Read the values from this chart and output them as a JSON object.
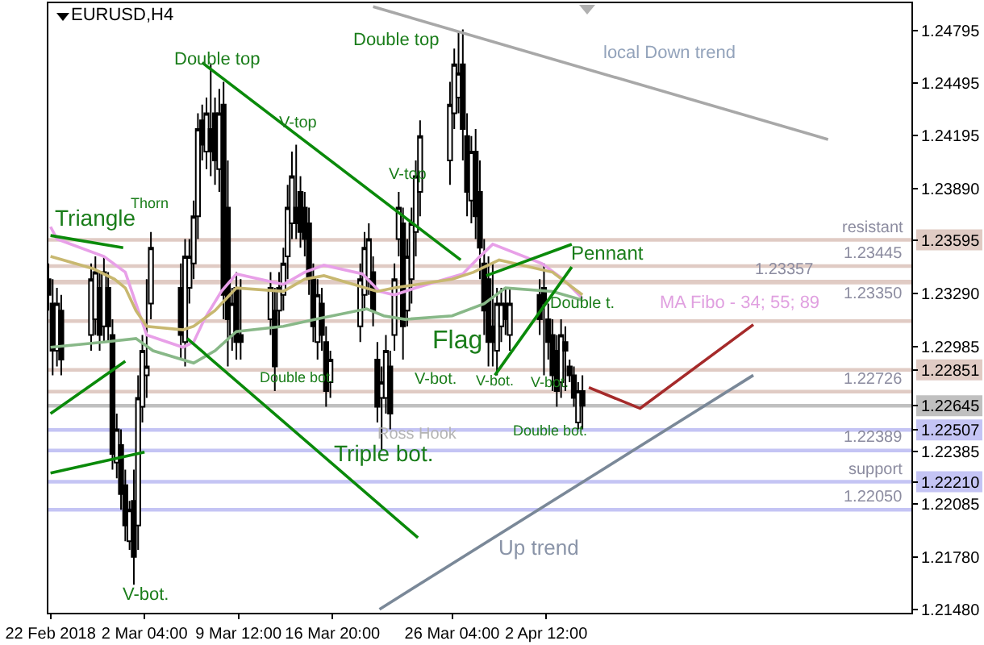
{
  "chart_data": {
    "type": "candlestick",
    "title": "EURUSD,H4",
    "color": "#000000",
    "x": [
      "2018-02-22T16:00",
      "2018-02-23T00:00",
      "2018-02-23T08:00",
      "2018-02-23T16:00",
      "2018-02-26T00:00",
      "2018-02-26T08:00",
      "2018-02-26T16:00",
      "2018-02-27T00:00",
      "2018-02-27T08:00",
      "2018-02-27T16:00",
      "2018-02-28T00:00",
      "2018-02-28T08:00",
      "2018-02-28T16:00",
      "2018-03-01T00:00",
      "2018-03-01T08:00",
      "2018-03-01T16:00",
      "2018-03-02T00:00",
      "2018-03-02T08:00",
      "2018-03-02T16:00",
      "2018-03-05T00:00",
      "2018-03-05T08:00",
      "2018-03-05T16:00",
      "2018-03-06T00:00",
      "2018-03-06T08:00",
      "2018-03-06T16:00",
      "2018-03-07T00:00",
      "2018-03-07T08:00",
      "2018-03-07T16:00",
      "2018-03-08T00:00",
      "2018-03-08T08:00",
      "2018-03-08T16:00",
      "2018-03-09T00:00",
      "2018-03-09T08:00",
      "2018-03-09T16:00",
      "2018-03-12T00:00",
      "2018-03-12T08:00",
      "2018-03-12T16:00",
      "2018-03-13T00:00",
      "2018-03-13T08:00",
      "2018-03-13T16:00",
      "2018-03-14T00:00",
      "2018-03-14T08:00",
      "2018-03-14T16:00",
      "2018-03-15T00:00",
      "2018-03-15T08:00",
      "2018-03-15T16:00",
      "2018-03-16T00:00",
      "2018-03-16T08:00",
      "2018-03-16T16:00",
      "2018-03-19T00:00",
      "2018-03-19T08:00",
      "2018-03-19T16:00",
      "2018-03-20T00:00",
      "2018-03-20T08:00",
      "2018-03-20T16:00",
      "2018-03-21T00:00",
      "2018-03-21T08:00",
      "2018-03-21T16:00",
      "2018-03-22T00:00",
      "2018-03-22T08:00",
      "2018-03-22T16:00",
      "2018-03-23T00:00",
      "2018-03-23T08:00",
      "2018-03-23T16:00",
      "2018-03-26T00:00",
      "2018-03-26T08:00",
      "2018-03-26T16:00",
      "2018-03-27T00:00",
      "2018-03-27T08:00",
      "2018-03-27T16:00",
      "2018-03-28T00:00",
      "2018-03-28T08:00",
      "2018-03-28T16:00",
      "2018-03-29T00:00",
      "2018-03-29T08:00",
      "2018-03-29T16:00",
      "2018-03-30T00:00",
      "2018-03-30T08:00",
      "2018-03-30T16:00",
      "2018-04-02T00:00",
      "2018-04-02T08:00",
      "2018-04-02T16:00",
      "2018-04-03T00:00",
      "2018-04-03T08:00",
      "2018-04-03T16:00",
      "2018-04-04T00:00",
      "2018-04-04T08:00",
      "2018-04-04T16:00",
      "2018-04-05T00:00",
      "2018-04-05T08:00"
    ],
    "ohlc": [
      [
        1.2337,
        1.2346,
        1.2319,
        1.2328
      ],
      [
        1.2323,
        1.2337,
        1.2282,
        1.2296
      ],
      [
        1.2296,
        1.2332,
        1.2287,
        1.2323
      ],
      [
        1.2319,
        1.2328,
        1.2282,
        1.2291
      ],
      [
        1.2305,
        1.2346,
        1.2296,
        1.2337
      ],
      [
        1.2314,
        1.235,
        1.2305,
        1.2341
      ],
      [
        1.2332,
        1.2341,
        1.2296,
        1.2305
      ],
      [
        1.231,
        1.235,
        1.2301,
        1.2341
      ],
      [
        1.2332,
        1.2341,
        1.2301,
        1.231
      ],
      [
        1.2305,
        1.2314,
        1.2228,
        1.2237
      ],
      [
        1.2232,
        1.226,
        1.2223,
        1.2251
      ],
      [
        1.2242,
        1.2251,
        1.2205,
        1.2214
      ],
      [
        1.2219,
        1.2228,
        1.2187,
        1.2196
      ],
      [
        1.2187,
        1.221,
        1.2182,
        1.2205
      ],
      [
        1.221,
        1.2228,
        1.2162,
        1.2178
      ],
      [
        1.2196,
        1.2282,
        1.2182,
        1.2269
      ],
      [
        1.2264,
        1.2305,
        1.2255,
        1.2296
      ],
      [
        1.2282,
        1.2337,
        1.2269,
        1.2287
      ],
      [
        1.2323,
        1.2364,
        1.2314,
        1.2355
      ],
      [
        1.2332,
        1.2346,
        1.2291,
        1.2305
      ],
      [
        1.2301,
        1.236,
        1.2287,
        1.235
      ],
      [
        1.2332,
        1.236,
        1.2323,
        1.235
      ],
      [
        1.2346,
        1.2382,
        1.2337,
        1.2373
      ],
      [
        1.2373,
        1.2432,
        1.236,
        1.2423
      ],
      [
        1.2428,
        1.2437,
        1.2405,
        1.2414
      ],
      [
        1.241,
        1.2441,
        1.24,
        1.2432
      ],
      [
        1.2423,
        1.246,
        1.2396,
        1.241
      ],
      [
        1.2432,
        1.2441,
        1.2391,
        1.2405
      ],
      [
        1.24,
        1.2446,
        1.2387,
        1.2432
      ],
      [
        1.2437,
        1.245,
        1.2314,
        1.2328
      ],
      [
        1.2378,
        1.2405,
        1.2287,
        1.2314
      ],
      [
        1.2305,
        1.2332,
        1.2296,
        1.2323
      ],
      [
        1.2332,
        1.2341,
        1.2291,
        1.2301
      ],
      [
        1.2305,
        1.2337,
        1.2291,
        1.2301
      ],
      [
        1.2314,
        1.2341,
        1.2305,
        1.2332
      ],
      [
        1.2319,
        1.2332,
        1.2273,
        1.2287
      ],
      [
        1.2319,
        1.2341,
        1.231,
        1.2332
      ],
      [
        1.2328,
        1.2355,
        1.2319,
        1.2346
      ],
      [
        1.235,
        1.2391,
        1.2337,
        1.2378
      ],
      [
        1.2369,
        1.241,
        1.236,
        1.2396
      ],
      [
        1.2378,
        1.2414,
        1.236,
        1.2369
      ],
      [
        1.2387,
        1.2396,
        1.2355,
        1.2364
      ],
      [
        1.2378,
        1.2387,
        1.235,
        1.236
      ],
      [
        1.2369,
        1.2378,
        1.2328,
        1.2337
      ],
      [
        1.2337,
        1.2346,
        1.2301,
        1.231
      ],
      [
        1.2301,
        1.2337,
        1.2291,
        1.2328
      ],
      [
        1.2323,
        1.2332,
        1.2296,
        1.2305
      ],
      [
        1.2301,
        1.231,
        1.2264,
        1.2273
      ],
      [
        1.2278,
        1.2296,
        1.2269,
        1.2291
      ],
      [
        1.231,
        1.2346,
        1.2301,
        1.2337
      ],
      [
        1.2328,
        1.2364,
        1.2319,
        1.2355
      ],
      [
        1.2337,
        1.2369,
        1.2328,
        1.236
      ],
      [
        1.2341,
        1.235,
        1.231,
        1.2319
      ],
      [
        1.2291,
        1.2301,
        1.2255,
        1.2264
      ],
      [
        1.2269,
        1.2287,
        1.2239,
        1.2278
      ],
      [
        1.2269,
        1.2305,
        1.226,
        1.2296
      ],
      [
        1.2287,
        1.2296,
        1.2251,
        1.226
      ],
      [
        1.2305,
        1.2346,
        1.2296,
        1.2337
      ],
      [
        1.236,
        1.2387,
        1.235,
        1.2378
      ],
      [
        1.2369,
        1.2378,
        1.2291,
        1.231
      ],
      [
        1.2319,
        1.236,
        1.231,
        1.235
      ],
      [
        1.2337,
        1.2378,
        1.2323,
        1.2369
      ],
      [
        1.2364,
        1.2405,
        1.235,
        1.2396
      ],
      [
        1.2387,
        1.2428,
        1.2373,
        1.2419
      ],
      [
        1.2405,
        1.245,
        1.2391,
        1.2437
      ],
      [
        1.2432,
        1.2469,
        1.2423,
        1.246
      ],
      [
        1.2441,
        1.2478,
        1.2432,
        1.2455
      ],
      [
        1.246,
        1.248,
        1.2405,
        1.2423
      ],
      [
        1.2419,
        1.2432,
        1.2373,
        1.2387
      ],
      [
        1.2382,
        1.2419,
        1.2369,
        1.241
      ],
      [
        1.241,
        1.2423,
        1.236,
        1.2373
      ],
      [
        1.2387,
        1.2405,
        1.2337,
        1.2355
      ],
      [
        1.2346,
        1.236,
        1.2305,
        1.2319
      ],
      [
        1.2337,
        1.235,
        1.2287,
        1.2301
      ],
      [
        1.231,
        1.2346,
        1.2287,
        1.2301
      ],
      [
        1.2296,
        1.2332,
        1.2282,
        1.2323
      ],
      [
        1.231,
        1.2332,
        1.2301,
        1.2323
      ],
      [
        1.2323,
        1.2332,
        1.2305,
        1.2314
      ],
      [
        1.2305,
        1.2332,
        1.2296,
        1.2323
      ],
      [
        1.2328,
        1.2337,
        1.2305,
        1.2314
      ],
      [
        1.2332,
        1.2346,
        1.2282,
        1.2323
      ],
      [
        1.2314,
        1.2323,
        1.2291,
        1.2301
      ],
      [
        1.2305,
        1.2314,
        1.2273,
        1.2282
      ],
      [
        1.2296,
        1.2305,
        1.2264,
        1.2273
      ],
      [
        1.2278,
        1.2314,
        1.2269,
        1.2305
      ],
      [
        1.2301,
        1.231,
        1.2273,
        1.2296
      ],
      [
        1.2287,
        1.2291,
        1.2278,
        1.2282
      ],
      [
        1.2282,
        1.2287,
        1.2264,
        1.2269
      ],
      [
        1.2255,
        1.2278,
        1.2251,
        1.2273
      ],
      [
        1.2273,
        1.2282,
        1.2251,
        1.22645
      ]
    ],
    "series": [
      {
        "type": "line",
        "color": "#e8a0e8",
        "x": [
          "2018-02-22T20:00",
          "2018-02-23T08:00",
          "2018-02-27T00:00",
          "2018-02-28T16:00",
          "2018-03-01T12:00",
          "2018-03-02T08:00",
          "2018-03-05T04:00",
          "2018-03-06T00:00",
          "2018-03-06T20:00",
          "2018-03-08T04:00",
          "2018-03-09T08:00",
          "2018-03-13T00:00",
          "2018-03-14T16:00",
          "2018-03-16T04:00",
          "2018-03-19T04:00",
          "2018-03-20T12:00",
          "2018-03-21T16:00",
          "2018-03-23T08:00",
          "2018-03-27T00:00",
          "2018-03-28T08:00",
          "2018-03-29T08:00",
          "2018-04-02T04:00",
          "2018-04-03T20:00",
          "2018-04-05T08:00"
        ],
        "values": [
          1.2367,
          1.236,
          1.235,
          1.2341,
          1.2323,
          1.2305,
          1.2298,
          1.2301,
          1.2314,
          1.233,
          1.234,
          1.2334,
          1.2341,
          1.2345,
          1.234,
          1.233,
          1.2328,
          1.2332,
          1.234,
          1.235,
          1.2357,
          1.2346,
          1.2337,
          1.2326
        ]
      },
      {
        "type": "line",
        "color": "#c8b870",
        "x": [
          "2018-02-22T20:00",
          "2018-02-26T04:00",
          "2018-02-27T20:00",
          "2018-02-28T16:00",
          "2018-03-01T12:00",
          "2018-03-02T08:00",
          "2018-03-05T04:00",
          "2018-03-06T00:00",
          "2018-03-07T16:00",
          "2018-03-09T08:00",
          "2018-03-13T00:00",
          "2018-03-14T16:00",
          "2018-03-16T04:00",
          "2018-03-20T08:00",
          "2018-03-21T16:00",
          "2018-03-26T04:00",
          "2018-03-27T20:00",
          "2018-03-29T20:00",
          "2018-04-03T00:00",
          "2018-04-05T08:00"
        ],
        "values": [
          1.235,
          1.2343,
          1.2337,
          1.2332,
          1.2319,
          1.231,
          1.2308,
          1.231,
          1.2319,
          1.2332,
          1.233,
          1.2337,
          1.2339,
          1.233,
          1.2332,
          1.2337,
          1.2341,
          1.2348,
          1.2341,
          1.2328
        ]
      },
      {
        "type": "line",
        "color": "#88b888",
        "x": [
          "2018-02-22T20:00",
          "2018-02-27T00:00",
          "2018-03-01T12:00",
          "2018-03-02T20:00",
          "2018-03-06T00:00",
          "2018-03-07T16:00",
          "2018-03-09T08:00",
          "2018-03-13T00:00",
          "2018-03-15T12:00",
          "2018-03-19T12:00",
          "2018-03-20T20:00",
          "2018-03-22T12:00",
          "2018-03-26T04:00",
          "2018-03-28T16:00",
          "2018-03-30T08:00",
          "2018-04-03T00:00",
          "2018-04-05T08:00"
        ],
        "values": [
          1.2298,
          1.2301,
          1.2303,
          1.2296,
          1.2289,
          1.2296,
          1.2307,
          1.231,
          1.2314,
          1.232,
          1.2316,
          1.2314,
          1.2316,
          1.2323,
          1.2332,
          1.233,
          1.2325
        ]
      },
      {
        "type": "line",
        "color": "#0a8a0a",
        "x": [
          "2018-02-22T20:00",
          "2018-02-28T12:00"
        ],
        "values": [
          1.2362,
          1.2355
        ]
      },
      {
        "type": "line",
        "color": "#0a8a0a",
        "x": [
          "2018-02-22T20:00",
          "2018-02-28T16:00"
        ],
        "values": [
          1.226,
          1.229
        ]
      },
      {
        "type": "line",
        "color": "#0a8a0a",
        "x": [
          "2018-02-22T20:00",
          "2018-03-02T04:00"
        ],
        "values": [
          1.2226,
          1.2238
        ]
      },
      {
        "type": "line",
        "color": "#0a8a0a",
        "x": [
          "2018-03-06T16:00",
          "2018-03-26T20:00"
        ],
        "values": [
          1.2461,
          1.2348
        ]
      },
      {
        "type": "line",
        "color": "#0a8a0a",
        "x": [
          "2018-03-05T12:00",
          "2018-03-23T12:00"
        ],
        "values": [
          1.2303,
          1.2189
        ]
      },
      {
        "type": "line",
        "color": "#0a8a0a",
        "x": [
          "2018-03-29T12:00",
          "2018-04-04T12:00"
        ],
        "values": [
          1.2282,
          1.2344
        ]
      },
      {
        "type": "line",
        "color": "#0a8a0a",
        "x": [
          "2018-03-28T20:00",
          "2018-04-04T12:00"
        ],
        "values": [
          1.2339,
          1.2357
        ]
      },
      {
        "type": "line",
        "color": "#a8a8a8",
        "x": [
          "2018-03-20T00:00",
          "2018-04-24T12:00"
        ],
        "values": [
          1.2493,
          1.2417
        ]
      },
      {
        "type": "line",
        "color": "#7a8898",
        "x": [
          "2018-03-20T12:00",
          "2018-04-18T16:00"
        ],
        "values": [
          1.2148,
          1.2282
        ]
      },
      {
        "type": "line",
        "color": "#a52a2a",
        "x": [
          "2018-04-05T20:00",
          "2018-04-09T20:00",
          "2018-04-18T16:00"
        ],
        "values": [
          1.2275,
          1.2263,
          1.2311
        ]
      }
    ],
    "ref_lines": [
      {
        "axis": "y",
        "value": 1.23595,
        "label": "resistant",
        "color": "#e0cbc4"
      },
      {
        "axis": "y",
        "value": 1.23445,
        "label": "1.23445",
        "color": "#e0cbc4"
      },
      {
        "axis": "y",
        "value": 1.2335,
        "label": "1.23350",
        "color": "#e0cbc4"
      },
      {
        "axis": "y",
        "value": 1.23357,
        "label": "1.23357",
        "color": "#e0cbc4"
      },
      {
        "axis": "y",
        "value": 1.2313,
        "color": "#e0cbc4"
      },
      {
        "axis": "y",
        "value": 1.22851,
        "color": "#e0cbc4"
      },
      {
        "axis": "y",
        "value": 1.22726,
        "label": "1.22726",
        "color": "#e0cbc4"
      },
      {
        "axis": "y",
        "value": 1.22645,
        "color": "#c0c0c0"
      },
      {
        "axis": "y",
        "value": 1.22507,
        "color": "#c4c4f4"
      },
      {
        "axis": "y",
        "value": 1.22389,
        "label": "1.22389",
        "color": "#c4c4f4"
      },
      {
        "axis": "y",
        "value": 1.2221,
        "label": "support",
        "color": "#c4c4f4"
      },
      {
        "axis": "y",
        "value": 1.2205,
        "label": "1.22050",
        "color": "#c4c4f4"
      }
    ],
    "annotations": [
      "Triangle",
      "Thorn",
      "Double top",
      "V-top",
      "Double top",
      "V-top",
      {
        "text": "Double bot.",
        "x": "2018-03-14T00:00",
        "y": 1.2281
      },
      "V-bot.",
      "Flag",
      {
        "text": "V-bot.",
        "x": "2018-03-29T12:00",
        "y": 1.2279
      },
      {
        "text": "V-bot.",
        "x": "2018-04-02T20:00",
        "y": 1.2278
      },
      {
        "text": "Double t.",
        "x": "2018-04-05T08:00",
        "y": 1.2323
      },
      {
        "text": "Double bot.",
        "x": "2018-04-02T20:00",
        "y": 1.225
      },
      {
        "text": "Ross Hook",
        "x": "2018-03-23T12:00",
        "y": 1.2248
      },
      {
        "text": "Triple bot.",
        "x": "2018-03-20T20:00",
        "y": 1.2237
      },
      "V-bot.",
      "Pennant",
      "MA Fibo - 34; 55; 89",
      "local Down trend",
      "Up trend"
    ],
    "xlim": [
      "2018-02-22T16:00",
      "2018-05-01T00:00"
    ],
    "xticks": [
      {
        "value": "2018-02-22T20:00",
        "label": "22 Feb 2018"
      },
      {
        "value": "2018-03-02T04:00",
        "label": "2 Mar 04:00"
      },
      {
        "value": "2018-03-09T12:00",
        "label": "9 Mar 12:00"
      },
      {
        "value": "2018-03-16T20:00",
        "label": "16 Mar 20:00"
      },
      {
        "value": "2018-03-26T04:00",
        "label": "26 Mar 04:00"
      },
      {
        "value": "2018-04-02T12:00",
        "label": "2 Apr 12:00"
      }
    ],
    "ylim": [
      1.2146,
      1.2495
    ],
    "yticks": [
      1.24795,
      1.24495,
      1.24195,
      {
        "value": 1.2389,
        "label": "1.23890"
      },
      1.23595,
      {
        "value": 1.2329,
        "label": "1.23290"
      },
      1.22985,
      1.22851,
      1.22645,
      1.22507,
      1.22385,
      {
        "value": 1.2221,
        "label": "1.22210"
      },
      1.22085,
      {
        "value": 1.2178,
        "label": "1.21780"
      },
      {
        "value": 1.2148,
        "label": "1.21480"
      }
    ]
  }
}
